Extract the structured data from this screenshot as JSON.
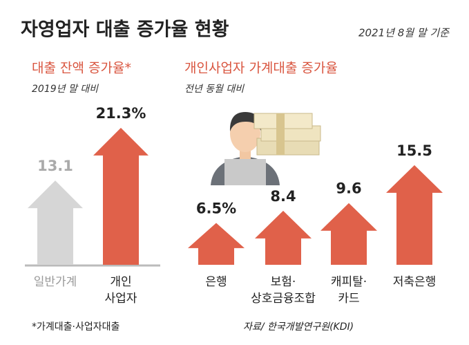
{
  "title": "자영업자 대출 증가율 현황",
  "subtitle": "2021년 8월 말 기준",
  "footnote": "*가계대출·사업자대출",
  "source": "자료/ 한국개발연구원(KDI)",
  "chart_data": [
    {
      "type": "arrow-bar",
      "title": "대출 잔액 증가율*",
      "subtitle": "2019년 말 대비",
      "categories": [
        "일반가계",
        "개인\n사업자"
      ],
      "values": [
        13.1,
        21.3
      ],
      "value_labels": [
        "13.1",
        "21.3%"
      ],
      "colors": [
        "#d6d6d6",
        "#e0614a"
      ]
    },
    {
      "type": "arrow-bar",
      "title": "개인사업자 가계대출 증가율",
      "subtitle": "전년 동월 대비",
      "categories": [
        "은행",
        "보험·\n상호금융조합",
        "캐피탈·\n카드",
        "저축은행"
      ],
      "values": [
        6.5,
        8.4,
        9.6,
        15.5
      ],
      "value_labels": [
        "6.5%",
        "8.4",
        "9.6",
        "15.5"
      ],
      "colors": [
        "#e0614a",
        "#e0614a",
        "#e0614a",
        "#e0614a"
      ]
    }
  ]
}
